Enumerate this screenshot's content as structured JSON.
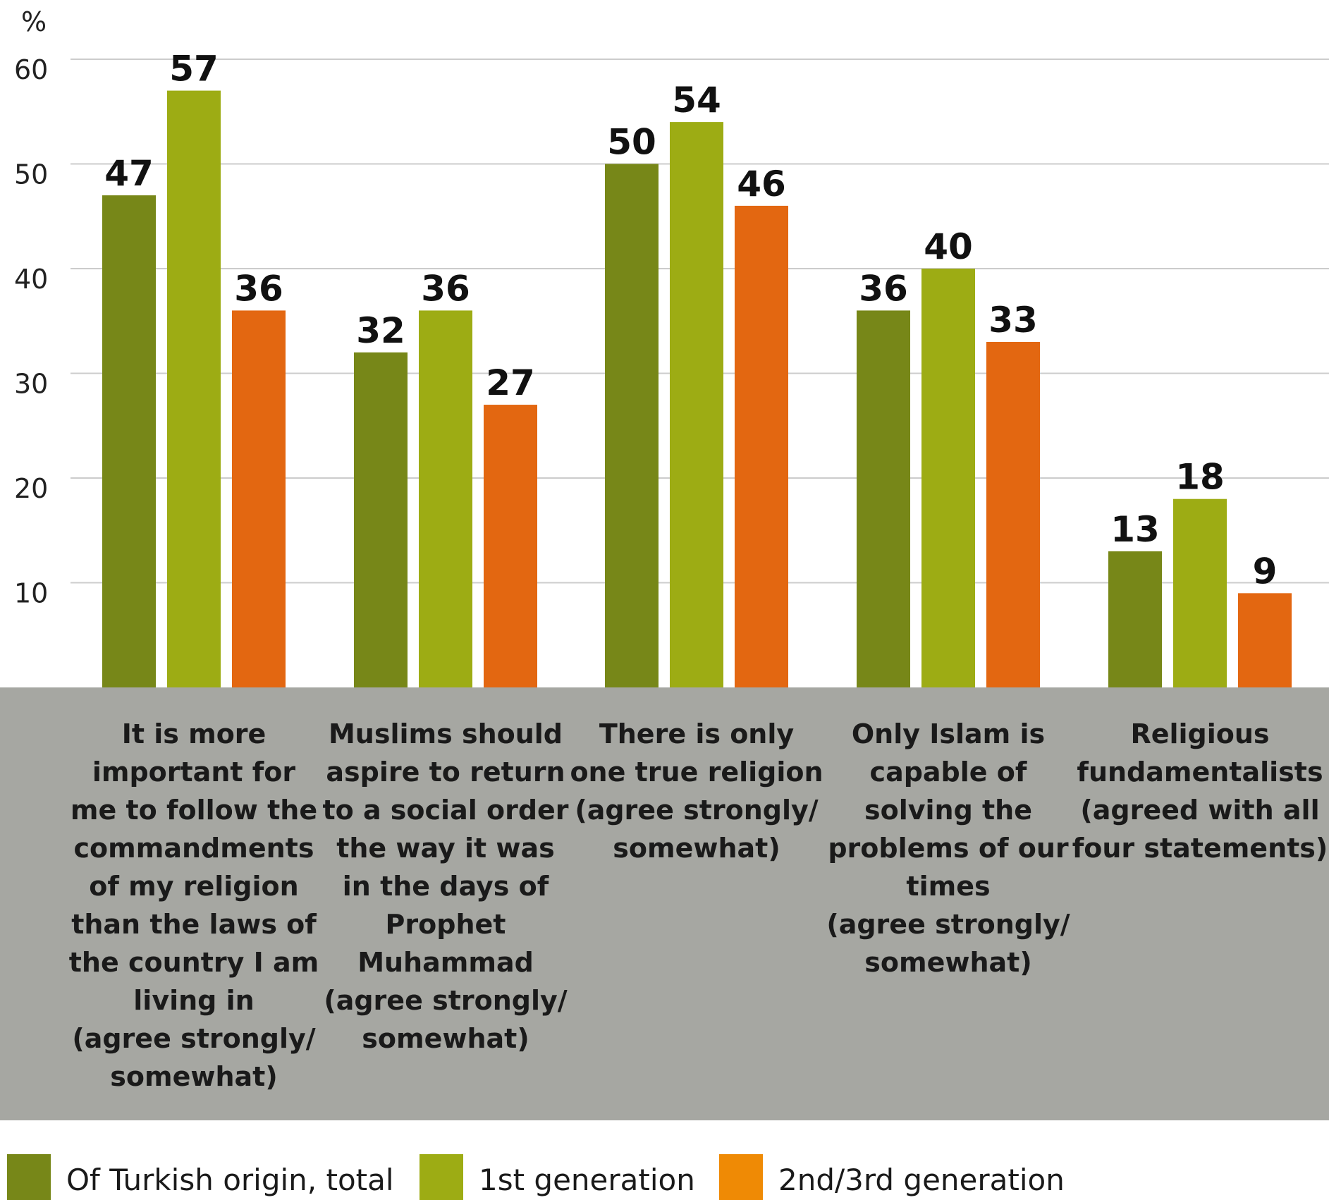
{
  "chart_data": {
    "type": "bar",
    "unit_label": "%",
    "ylim": [
      0,
      60
    ],
    "yticks": [
      10,
      20,
      30,
      40,
      50,
      60
    ],
    "grid": true,
    "legend_position": "bottom",
    "categories": [
      [
        "It is more",
        "important for",
        "me to follow the",
        "commandments",
        "of my religion",
        "than the laws of",
        "the country I am",
        "living in",
        "(agree strongly/",
        "somewhat)"
      ],
      [
        "Muslims should",
        "aspire to return",
        "to a social order",
        "the way it was",
        "in the days of",
        "Prophet",
        "Muhammad",
        "(agree strongly/",
        "somewhat)"
      ],
      [
        "There is only",
        "one true religion",
        "(agree strongly/",
        "somewhat)"
      ],
      [
        "Only Islam is",
        "capable of",
        "solving the",
        "problems of our",
        "times",
        "(agree strongly/",
        "somewhat)"
      ],
      [
        "Religious",
        "fundamentalists",
        "(agreed with all",
        "four statements)"
      ]
    ],
    "series": [
      {
        "name": "Of Turkish origin, total",
        "color": "#778718",
        "values": [
          47,
          32,
          50,
          36,
          13
        ]
      },
      {
        "name": "1st generation",
        "color": "#9dac14",
        "values": [
          57,
          36,
          54,
          40,
          18
        ]
      },
      {
        "name": "2nd/3rd generation",
        "color": "#e36711",
        "values": [
          36,
          27,
          46,
          33,
          9
        ]
      }
    ],
    "legend_swatch_colors": [
      "#778718",
      "#9dac14",
      "#ef8a05"
    ],
    "category_band_color": "#a6a7a2",
    "grid_color": "#cccccc"
  }
}
